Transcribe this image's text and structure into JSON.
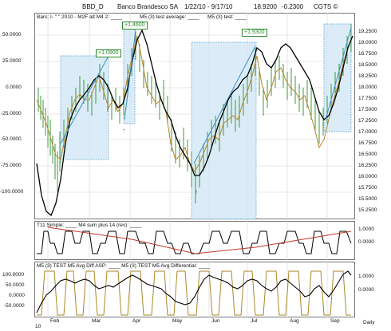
{
  "header": {
    "symbol": "BBD_D",
    "name": "Banco Brandesco SA",
    "date_range": "1/22/10 - 9/17/10",
    "last": "18.9200",
    "change": "-0.2300",
    "copyright": "CGTS ©"
  },
  "main_panel": {
    "legend": "Bars: I-    \" \" 2010 - M2F alt M4 2: ____",
    "legend2": "M5 (3) test average: ____",
    "legend3": "M5 (3) test: ____",
    "left_axis": [
      "50.0000",
      "25.0000",
      "0.0000",
      "-25.0000",
      "-50.0000",
      "-75.0000",
      "-100.0000"
    ],
    "right_axis": [
      "19.2500",
      "19.0000",
      "18.7500",
      "18.5000",
      "18.2500",
      "18.0000",
      "17.7500",
      "17.5000",
      "17.2500",
      "17.0000",
      "16.7500",
      "16.5000",
      "16.2500",
      "16.0000",
      "15.7500",
      "15.5000",
      "15.2500"
    ],
    "callouts": [
      "+1.0900",
      "+1.4600",
      "+1.9300"
    ]
  },
  "panel2": {
    "legend": "T11 Simple: ____    M4 sum plus 14 (rev): ____",
    "right_axis": [
      "1.0000",
      "0.0000"
    ]
  },
  "panel3": {
    "legend": "M5 (3) TEST M5 Avg Diff ASP: ____    M5 (3) TEST M5 Avg Differential: ____",
    "left_axis": [
      "100.0000",
      "50.0000",
      "0.0000",
      "-50.0000"
    ],
    "right_axis": [
      "1.0000",
      "0.0000"
    ]
  },
  "x_axis": {
    "months": [
      "Feb",
      "Mar",
      "Apr",
      "May",
      "Jun",
      "Jul",
      "Aug",
      "Sep"
    ],
    "period": "Daily",
    "year": "10"
  }
}
